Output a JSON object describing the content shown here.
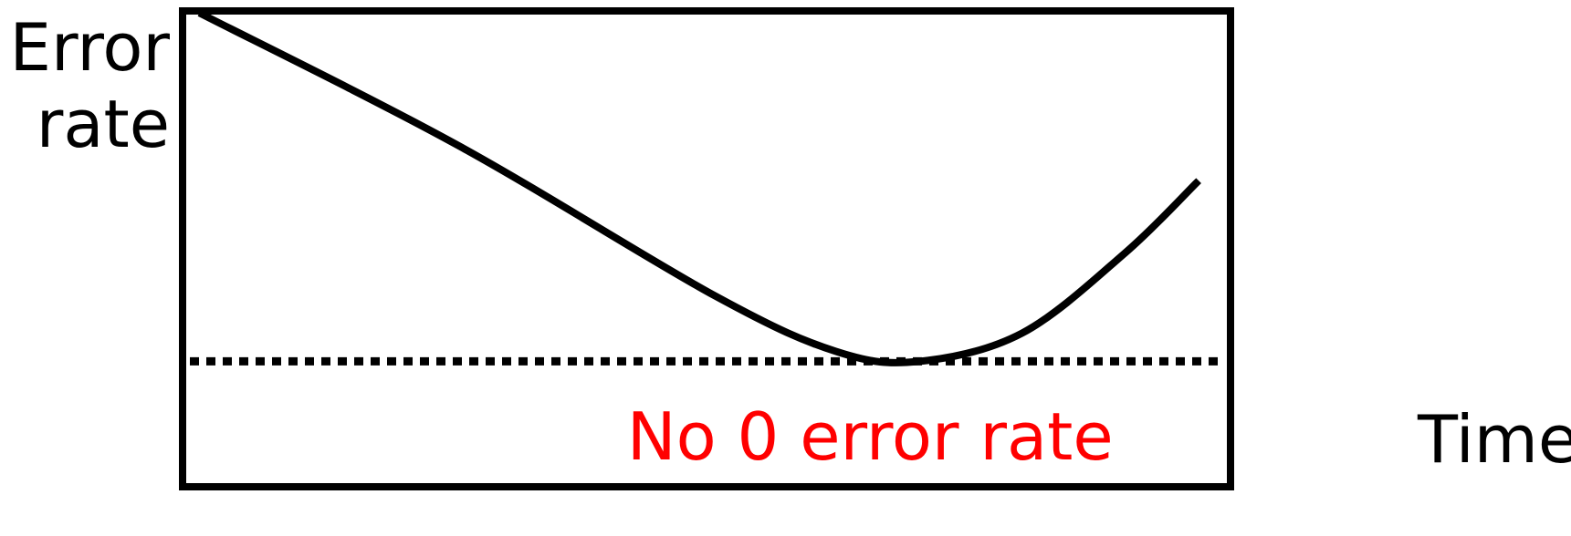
{
  "chart_data": {
    "type": "line",
    "title": "",
    "ylabel_lines": [
      "Error",
      "rate"
    ],
    "xlabel": "Time",
    "axis_ranges": {
      "x": [
        0,
        1
      ],
      "y": [
        0,
        1
      ]
    },
    "ticks_shown": false,
    "grid": false,
    "legend": "none",
    "series": [
      {
        "x": [
          0.0,
          0.25,
          0.5,
          0.62,
          0.7,
          0.8,
          0.9,
          0.97
        ],
        "y": [
          1.0,
          0.72,
          0.4,
          0.28,
          0.26,
          0.32,
          0.49,
          0.64
        ],
        "color": "#000000"
      }
    ],
    "reference_line": {
      "y": 0.26,
      "style": "dotted",
      "color": "#000000"
    },
    "annotation": {
      "text": "No 0 error rate",
      "color": "#ff0000"
    }
  }
}
